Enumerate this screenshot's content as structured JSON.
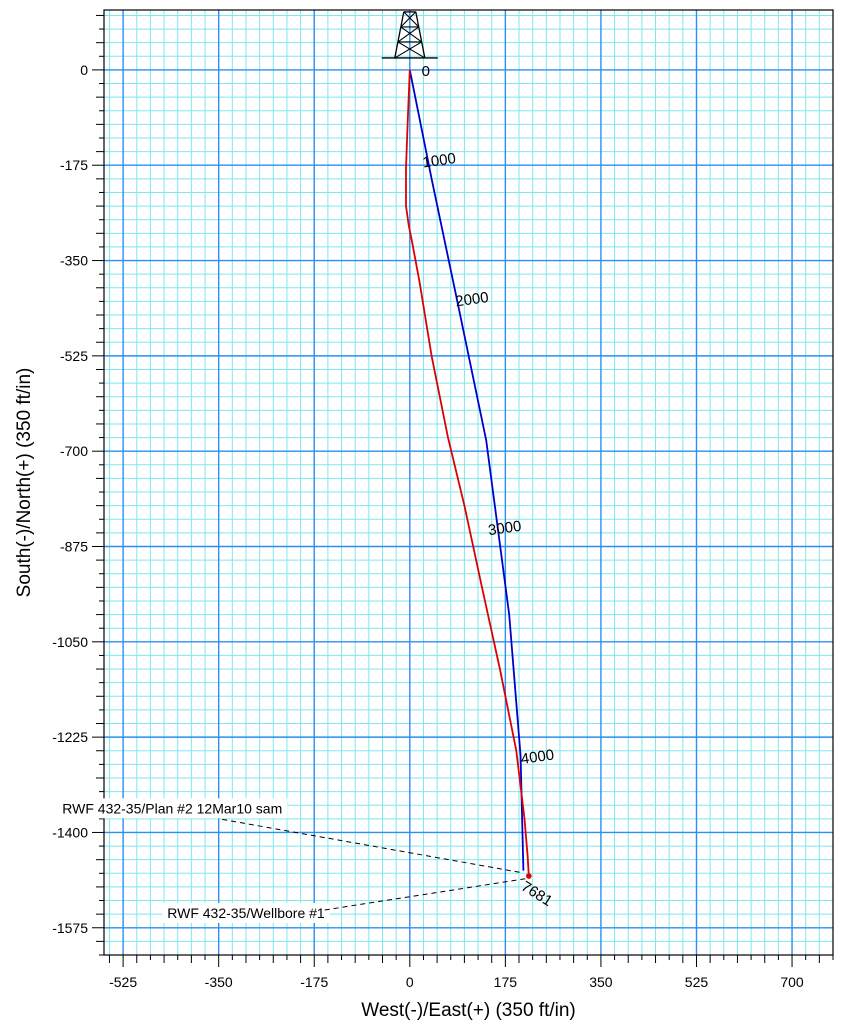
{
  "chart_data": {
    "type": "line",
    "title": "",
    "xlabel": "West(-)/East(+) (350 ft/in)",
    "ylabel": "South(-)/North(+) (350 ft/in)",
    "xlim": [
      -560,
      775
    ],
    "ylim": [
      -1625,
      110
    ],
    "x_ticks": [
      -525,
      -350,
      -175,
      0,
      175,
      350,
      525,
      700
    ],
    "y_ticks": [
      0,
      -175,
      -350,
      -525,
      -700,
      -875,
      -1050,
      -1225,
      -1400,
      -1575
    ],
    "x_tick_labels": [
      "-525",
      "-350",
      "-175",
      "0",
      "175",
      "350",
      "525",
      "700"
    ],
    "y_tick_labels": [
      "0",
      "-175",
      "-350",
      "-525",
      "-700",
      "-875",
      "-1050",
      "-1225",
      "-1400",
      "-1575"
    ],
    "grid": true,
    "colors": {
      "major_grid": "#2b8ef0",
      "minor_grid": "#7ee8ee",
      "plan": "#0000cc",
      "wellbore": "#dd0000"
    },
    "series": [
      {
        "name": "RWF 432-35/Plan #2 12Mar10 sam",
        "color": "#0000cc",
        "points": [
          [
            0,
            0
          ],
          [
            40,
            -200
          ],
          [
            88,
            -430
          ],
          [
            140,
            -680
          ],
          [
            182,
            -1000
          ],
          [
            203,
            -1260
          ],
          [
            208,
            -1470
          ]
        ]
      },
      {
        "name": "RWF 432-35/Wellbore #1",
        "color": "#dd0000",
        "points": [
          [
            0,
            0
          ],
          [
            -4,
            -100
          ],
          [
            -7,
            -180
          ],
          [
            -7,
            -250
          ],
          [
            -2,
            -285
          ],
          [
            5,
            -320
          ],
          [
            18,
            -390
          ],
          [
            40,
            -525
          ],
          [
            70,
            -675
          ],
          [
            100,
            -800
          ],
          [
            130,
            -940
          ],
          [
            165,
            -1100
          ],
          [
            195,
            -1250
          ],
          [
            210,
            -1375
          ],
          [
            216,
            -1445
          ],
          [
            218,
            -1480
          ]
        ]
      }
    ],
    "md_labels": [
      {
        "text": "1000",
        "x": 55,
        "y": -175
      },
      {
        "text": "2000",
        "x": 115,
        "y": -430
      },
      {
        "text": "3000",
        "x": 175,
        "y": -850
      },
      {
        "text": "4000",
        "x": 235,
        "y": -1270
      },
      {
        "text": "7681",
        "x": 228,
        "y": -1520
      }
    ],
    "rig_label": "0",
    "well_labels": [
      {
        "text": "RWF 432-35/Plan #2 12Mar10 sam",
        "x": -435,
        "y": -1365,
        "end_x": 206,
        "end_y": -1474
      },
      {
        "text": "RWF 432-35/Wellbore #1",
        "x": -300,
        "y": -1557,
        "end_x": 218,
        "end_y": -1484
      }
    ]
  }
}
